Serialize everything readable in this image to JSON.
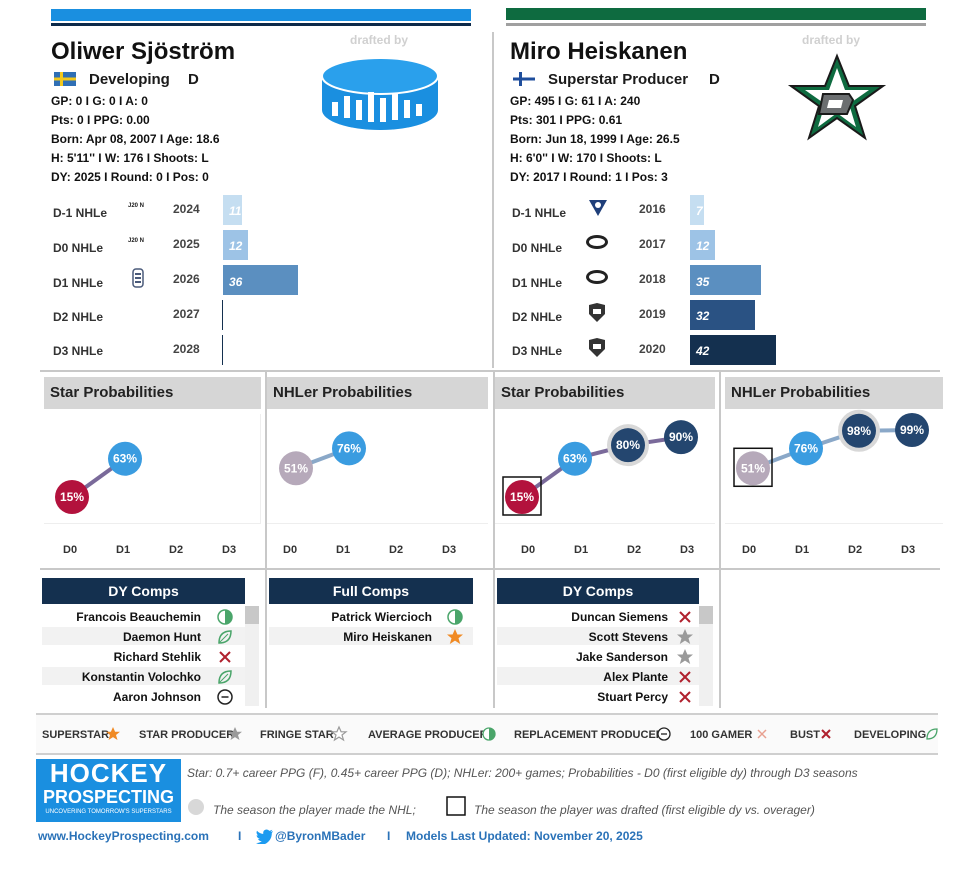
{
  "left": {
    "name": "Oliwer Sjöström",
    "drafted_by": "drafted by",
    "country_flag_icon": "sweden-flag-icon",
    "status": "Developing",
    "position": "D",
    "line1": "GP: 0 I G: 0 I A: 0",
    "line2": "Pts: 0 I PPG: 0.00",
    "line3": "Born: Apr 08, 2007 I Age: 18.6",
    "line4": "H: 5'11'' I W: 176 I Shoots: L",
    "line5": "DY: 2025 I Round: 0 I Pos: 0",
    "nhle": [
      {
        "label": "D-1 NHLe",
        "year": "2024",
        "value": 11,
        "team_icon": "j20-nationell-icon",
        "team_text": "J20 N"
      },
      {
        "label": "D0 NHLe",
        "year": "2025",
        "value": 12,
        "team_icon": "j20-nationell-icon",
        "team_text": "J20 N"
      },
      {
        "label": "D1 NHLe",
        "year": "2026",
        "value": 36,
        "team_icon": "hockeyallsvenskan-icon",
        "team_text": ""
      },
      {
        "label": "D2 NHLe",
        "year": "2027",
        "value": null,
        "team_icon": "",
        "team_text": ""
      },
      {
        "label": "D3 NHLe",
        "year": "2028",
        "value": null,
        "team_icon": "",
        "team_text": ""
      }
    ],
    "star_title": "Star Probabilities",
    "nhler_title": "NHLer Probabilities",
    "star_probs": {
      "D0": 15,
      "D1": 63
    },
    "nhler_probs": {
      "D0": 51,
      "D1": 76
    },
    "star_labels": {
      "D0": "15%",
      "D1": "63%"
    },
    "nhler_labels": {
      "D0": "51%",
      "D1": "76%"
    },
    "dy_comps_title": "DY Comps",
    "dy_comps": [
      {
        "name": "Francois Beauchemin",
        "icon": "average-producer-icon"
      },
      {
        "name": "Daemon Hunt",
        "icon": "developing-icon"
      },
      {
        "name": "Richard Stehlik",
        "icon": "bust-icon"
      },
      {
        "name": "Konstantin Volochko",
        "icon": "developing-icon"
      },
      {
        "name": "Aaron Johnson",
        "icon": "replacement-producer-icon"
      }
    ],
    "full_comps_title": "Full Comps",
    "full_comps": [
      {
        "name": "Patrick Wiercioch",
        "icon": "average-producer-icon"
      },
      {
        "name": "Miro Heiskanen",
        "icon": "superstar-icon"
      }
    ]
  },
  "right": {
    "name": "Miro Heiskanen",
    "drafted_by": "drafted by",
    "country_flag_icon": "finland-flag-icon",
    "status": "Superstar Producer",
    "position": "D",
    "line1": "GP: 495 I G: 61 I A: 240",
    "line2": "Pts: 301 I PPG: 0.61",
    "line3": "Born: Jun 18, 1999 I Age: 26.5",
    "line4": "H: 6'0'' I W: 170 I Shoots: L",
    "line5": "DY: 2017 I Round: 1 I Pos: 3",
    "nhle": [
      {
        "label": "D-1 NHLe",
        "year": "2016",
        "value": 7,
        "team_icon": "hifk-icon"
      },
      {
        "label": "D0 NHLe",
        "year": "2017",
        "value": 12,
        "team_icon": "liiga-icon"
      },
      {
        "label": "D1 NHLe",
        "year": "2018",
        "value": 35,
        "team_icon": "liiga-icon"
      },
      {
        "label": "D2 NHLe",
        "year": "2019",
        "value": 32,
        "team_icon": "nhl-icon"
      },
      {
        "label": "D3 NHLe",
        "year": "2020",
        "value": 42,
        "team_icon": "nhl-icon"
      }
    ],
    "star_title": "Star Probabilities",
    "nhler_title": "NHLer Probabilities",
    "star_probs": {
      "D0": 15,
      "D1": 63,
      "D2": 80,
      "D3": 90
    },
    "nhler_probs": {
      "D0": 51,
      "D1": 76,
      "D2": 98,
      "D3": 99
    },
    "star_labels": {
      "D0": "15%",
      "D1": "63%",
      "D2": "80%",
      "D3": "90%"
    },
    "nhler_labels": {
      "D0": "51%",
      "D1": "76%",
      "D2": "98%",
      "D3": "99%"
    },
    "dy_comps_title": "DY Comps",
    "dy_comps": [
      {
        "name": "Duncan Siemens",
        "icon": "bust-icon"
      },
      {
        "name": "Scott Stevens",
        "icon": "star-producer-icon"
      },
      {
        "name": "Jake Sanderson",
        "icon": "star-producer-icon"
      },
      {
        "name": "Alex Plante",
        "icon": "bust-icon"
      },
      {
        "name": "Stuart Percy",
        "icon": "bust-icon"
      }
    ]
  },
  "axis_labels": [
    "D0",
    "D1",
    "D2",
    "D3"
  ],
  "legend": [
    {
      "label": "SUPERSTAR",
      "icon": "superstar-icon"
    },
    {
      "label": "STAR PRODUCER",
      "icon": "star-producer-icon"
    },
    {
      "label": "FRINGE STAR",
      "icon": "fringe-star-icon"
    },
    {
      "label": "AVERAGE PRODUCER",
      "icon": "average-producer-icon"
    },
    {
      "label": "REPLACEMENT PRODUCER",
      "icon": "replacement-producer-icon"
    },
    {
      "label": "100 GAMER",
      "icon": "100-gamer-icon"
    },
    {
      "label": "BUST",
      "icon": "bust-icon"
    },
    {
      "label": "DEVELOPING",
      "icon": "developing-icon"
    }
  ],
  "logo": {
    "line1": "HOCKEY",
    "line2": "PROSPECTING",
    "tagline": "UNCOVERING TOMORROW'S SUPERSTARS"
  },
  "footnote1": "Star: 0.7+ career PPG (F), 0.45+ career PPG (D); NHLer: 200+ games; Probabilities - D0 (first eligible dy) through D3 seasons",
  "footnote2": "The season the player made the NHL;",
  "footnote3": "The season the player was drafted (first eligible dy vs. overager)",
  "site": "www.HockeyProspecting.com",
  "sep": "I",
  "twitter": "@ByronMBader",
  "updated": "Models Last Updated: November 20, 2025",
  "colors": {
    "blue_accent": "#1a8fe0",
    "green_accent": "#0e6b40",
    "navy": "#14304f"
  }
}
